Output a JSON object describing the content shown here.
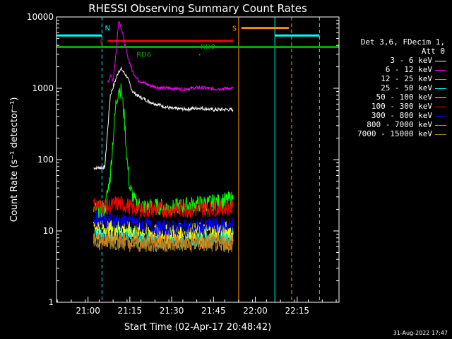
{
  "chart_data": {
    "type": "line",
    "title": "RHESSI Observing Summary Count Rates",
    "xlabel": "Start Time (02-Apr-17 20:48:42)",
    "ylabel": "Count Rate (s⁻¹ detector⁻¹)",
    "y_scale": "log",
    "ylim": [
      1,
      10000
    ],
    "xlim": [
      "20:48:42",
      "22:30:00"
    ],
    "x_ticks": [
      "21:00",
      "21:15",
      "21:30",
      "21:45",
      "22:00",
      "22:15"
    ],
    "y_ticks": [
      "1",
      "10",
      "100",
      "1000",
      "10000"
    ],
    "legend_header": [
      "Det 3,6, FDecim 1,",
      "Att 0"
    ],
    "legend_placement": "right",
    "series": [
      {
        "name": "3 - 6 keV",
        "color": "#ffffff",
        "x": [
          "21:02",
          "21:06",
          "21:08",
          "21:10",
          "21:11",
          "21:12",
          "21:14",
          "21:16",
          "21:18",
          "21:22",
          "21:27",
          "21:30",
          "21:35",
          "21:40",
          "21:45",
          "21:50",
          "21:52"
        ],
        "y": [
          76,
          78,
          800,
          1350,
          1750,
          1850,
          1450,
          900,
          780,
          650,
          560,
          520,
          510,
          530,
          500,
          505,
          500
        ]
      },
      {
        "name": "6 - 12 keV",
        "color": "#ff00ff",
        "x": [
          "21:07",
          "21:08",
          "21:09",
          "21:10",
          "21:11",
          "21:12",
          "21:13",
          "21:14",
          "21:16",
          "21:18",
          "21:22",
          "21:27",
          "21:30",
          "21:35",
          "21:40",
          "21:45",
          "21:50",
          "21:52"
        ],
        "y": [
          1200,
          1500,
          1300,
          3000,
          9000,
          7000,
          4500,
          3000,
          1700,
          1300,
          1100,
          1000,
          1000,
          980,
          1020,
          980,
          1000,
          990
        ]
      },
      {
        "name": "12 - 25 keV",
        "color": "#00ff00",
        "x": [
          "21:02",
          "21:06",
          "21:08",
          "21:09",
          "21:10",
          "21:11",
          "21:12",
          "21:13",
          "21:14",
          "21:15",
          "21:17",
          "21:20",
          "21:25",
          "21:30",
          "21:35",
          "21:40",
          "21:45",
          "21:50",
          "21:52"
        ],
        "y": [
          20,
          20,
          60,
          200,
          600,
          1000,
          900,
          400,
          100,
          40,
          25,
          22,
          22,
          21,
          23,
          24,
          25,
          27,
          28
        ]
      },
      {
        "name": "25 - 50 keV",
        "color": "#00ffff",
        "x": [
          "21:02",
          "21:08",
          "21:12",
          "21:16",
          "21:20",
          "21:25",
          "21:30",
          "21:35",
          "21:40",
          "21:45",
          "21:50",
          "21:52"
        ],
        "y": [
          9,
          9,
          9.5,
          9,
          8,
          7.5,
          7,
          7.5,
          8,
          8.5,
          8.5,
          9
        ]
      },
      {
        "name": "50 - 100 keV",
        "color": "#ffff00",
        "x": [
          "21:02",
          "21:08",
          "21:12",
          "21:16",
          "21:20",
          "21:25",
          "21:30",
          "21:35",
          "21:40",
          "21:45",
          "21:50",
          "21:52"
        ],
        "y": [
          12,
          11,
          11,
          10,
          10,
          9.5,
          9.5,
          10,
          10,
          10,
          10.5,
          10
        ]
      },
      {
        "name": "100 - 300 keV",
        "color": "#ff0000",
        "x": [
          "21:02",
          "21:08",
          "21:10",
          "21:12",
          "21:16",
          "21:20",
          "21:25",
          "21:30",
          "21:35",
          "21:40",
          "21:45",
          "21:50",
          "21:52"
        ],
        "y": [
          23,
          22,
          24,
          24,
          21,
          20,
          20,
          20,
          20,
          20,
          21,
          21,
          21
        ]
      },
      {
        "name": "300 - 800 keV",
        "color": "#0000ff",
        "x": [
          "21:02",
          "21:08",
          "21:12",
          "21:16",
          "21:20",
          "21:25",
          "21:30",
          "21:35",
          "21:40",
          "21:45",
          "21:50",
          "21:52"
        ],
        "y": [
          15,
          14,
          14,
          13,
          12,
          11,
          11,
          11,
          11.5,
          12,
          12,
          12
        ]
      },
      {
        "name": "800 - 7000 keV",
        "color": "#ff8c00",
        "x": [
          "21:02",
          "21:08",
          "21:12",
          "21:16",
          "21:20",
          "21:25",
          "21:30",
          "21:35",
          "21:40",
          "21:45",
          "21:50",
          "21:52"
        ],
        "y": [
          7.5,
          7.5,
          7.5,
          7,
          7,
          7,
          7,
          7,
          7,
          7,
          7,
          7
        ]
      },
      {
        "name": "7000 - 15000 keV",
        "color": "#a0822c",
        "x": [
          "21:02",
          "21:08",
          "21:12",
          "21:16",
          "21:20",
          "21:25",
          "21:30",
          "21:35",
          "21:40",
          "21:45",
          "21:50",
          "21:52"
        ],
        "y": [
          7,
          7,
          7,
          6.5,
          6.5,
          6.5,
          6.5,
          6.5,
          6.5,
          6.5,
          6.5,
          6.5
        ]
      }
    ],
    "annotations": [
      {
        "label": "N",
        "color": "#00ffff"
      },
      {
        "label": "F",
        "color": "#ff0000"
      },
      {
        "label": "S",
        "color": "#ff8c00"
      },
      {
        "label": "RD0",
        "color": "#00aa00"
      },
      {
        "label": "RD6",
        "color": "#00aa00"
      }
    ],
    "flag_bars": [
      {
        "color": "#00ffff",
        "x": [
          "20:48:42",
          "21:05"
        ],
        "level": 5500
      },
      {
        "color": "#00ffff",
        "x": [
          "22:07",
          "22:23"
        ],
        "level": 5500
      },
      {
        "color": "#ff0000",
        "x": [
          "21:07",
          "21:52"
        ],
        "level": 4600
      },
      {
        "color": "#ff8c00",
        "x": [
          "21:55",
          "22:12"
        ],
        "level": 7000
      },
      {
        "color": "#00aa00",
        "x": [
          "20:48:42",
          "22:30"
        ],
        "level": 3800
      }
    ],
    "vertical_lines": [
      {
        "x": "20:48:42",
        "color": "#00ffff",
        "style": "solid"
      },
      {
        "x": "21:05",
        "color": "#00ffff",
        "style": "dashed"
      },
      {
        "x": "21:54",
        "color": "#ff8c00",
        "style": "solid"
      },
      {
        "x": "22:07",
        "color": "#00ffff",
        "style": "solid"
      },
      {
        "x": "22:13",
        "color": "#ff8c00",
        "style": "dashed"
      },
      {
        "x": "22:23",
        "color": "#00ffff",
        "style": "dashed"
      }
    ],
    "grid": false
  },
  "footer": {
    "date_stamp": "31-Aug-2022 17:47"
  }
}
